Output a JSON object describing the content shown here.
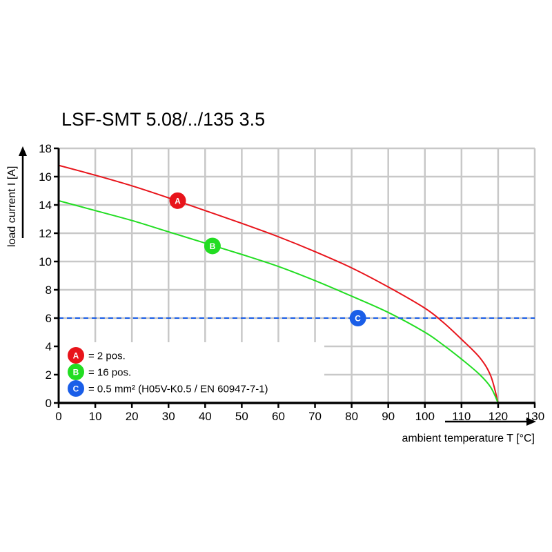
{
  "chart_data": {
    "type": "line",
    "title": "LSF-SMT 5.08/../135 3.5",
    "xlabel": "ambient temperature T [°C]",
    "ylabel": "load current I [A]",
    "xlim": [
      0,
      130
    ],
    "ylim": [
      0,
      18
    ],
    "xticks": [
      0,
      10,
      20,
      30,
      40,
      50,
      60,
      70,
      80,
      90,
      100,
      110,
      120,
      130
    ],
    "yticks": [
      0,
      2,
      4,
      6,
      8,
      10,
      12,
      14,
      16,
      18
    ],
    "grid": true,
    "legend_position": "bottom-left",
    "series": [
      {
        "marker": "A",
        "color": "#e8141b",
        "x": [
          0,
          10,
          20,
          30,
          40,
          50,
          60,
          70,
          80,
          90,
          100,
          105,
          110,
          115,
          118,
          120
        ],
        "y": [
          16.8,
          16.1,
          15.35,
          14.5,
          13.6,
          12.7,
          11.75,
          10.7,
          9.55,
          8.2,
          6.7,
          5.7,
          4.5,
          3.2,
          1.9,
          0
        ]
      },
      {
        "marker": "B",
        "color": "#22dd22",
        "x": [
          0,
          10,
          20,
          30,
          40,
          50,
          60,
          70,
          80,
          90,
          100,
          105,
          110,
          115,
          118,
          120
        ],
        "y": [
          14.3,
          13.6,
          12.9,
          12.1,
          11.3,
          10.5,
          9.65,
          8.65,
          7.55,
          6.4,
          5.0,
          4.1,
          3.1,
          2.0,
          1.1,
          0
        ]
      },
      {
        "marker": "C",
        "color": "#1a5ee8",
        "dashed": true,
        "x": [
          0,
          130
        ],
        "y": [
          6,
          6
        ]
      }
    ],
    "markers": [
      {
        "label": "A",
        "x": 32.5,
        "y": 14.3,
        "color": "#e8141b"
      },
      {
        "label": "B",
        "x": 42,
        "y": 11.1,
        "color": "#22dd22"
      },
      {
        "label": "C",
        "x": 81.7,
        "y": 6,
        "color": "#1a5ee8"
      }
    ],
    "legend": [
      {
        "label": "A",
        "text": "= 2 pos.",
        "color": "#e8141b"
      },
      {
        "label": "B",
        "text": "= 16 pos.",
        "color": "#22dd22"
      },
      {
        "label": "C",
        "text": "= 0.5 mm² (H05V-K0.5 / EN 60947-7-1)",
        "color": "#1a5ee8"
      }
    ]
  }
}
